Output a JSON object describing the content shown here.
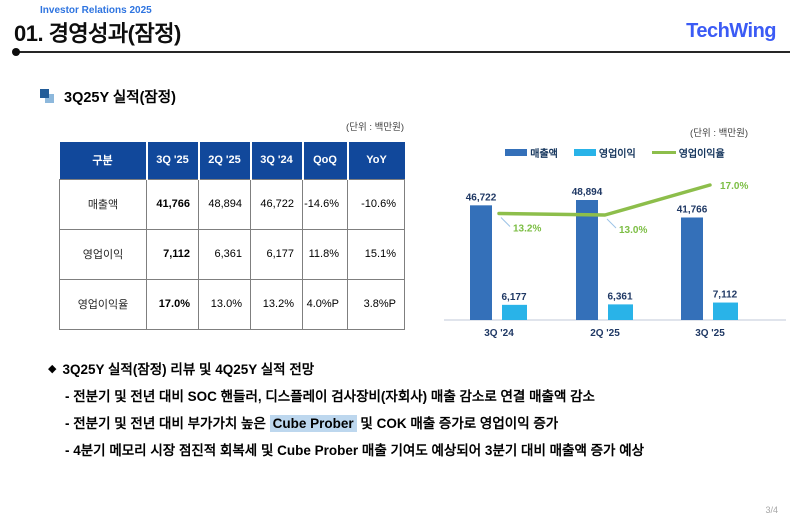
{
  "header": {
    "eyebrow": "Investor Relations 2025",
    "title": "01. 경영성과(잠정)",
    "logo": "TechWing"
  },
  "section": {
    "title": "3Q25Y 실적(잠정)"
  },
  "table": {
    "unit_label": "(단위 : 백만원)",
    "columns": [
      "구분",
      "3Q '25",
      "2Q '25",
      "3Q '24",
      "QoQ",
      "YoY"
    ],
    "rows": [
      {
        "label": "매출액",
        "values": [
          "41,766",
          "48,894",
          "46,722",
          "-14.6%",
          "-10.6%"
        ]
      },
      {
        "label": "영업이익",
        "values": [
          "7,112",
          "6,361",
          "6,177",
          "11.8%",
          "15.1%"
        ]
      },
      {
        "label": "영업이익율",
        "values": [
          "17.0%",
          "13.0%",
          "13.2%",
          "4.0%P",
          "3.8%P"
        ]
      }
    ]
  },
  "chart_data": {
    "type": "bar",
    "unit_label": "(단위 : 백만원)",
    "categories": [
      "3Q '24",
      "2Q '25",
      "3Q '25"
    ],
    "series": [
      {
        "name": "매출액",
        "type": "bar",
        "color": "#3470B9",
        "values": [
          46722,
          48894,
          41766
        ],
        "labels": [
          "46,722",
          "48,894",
          "41,766"
        ]
      },
      {
        "name": "영업이익",
        "type": "bar",
        "color": "#29B3E8",
        "values": [
          6177,
          6361,
          7112
        ],
        "labels": [
          "6,177",
          "6,361",
          "7,112"
        ]
      },
      {
        "name": "영업이익율",
        "type": "line",
        "color": "#8DBE4B",
        "values": [
          13.2,
          13.0,
          17.0
        ],
        "labels": [
          "13.2%",
          "13.0%",
          "17.0%"
        ]
      }
    ],
    "legend_position": "top",
    "value_axis_hidden": true,
    "grid": false
  },
  "bullets": {
    "heading": "3Q25Y 실적(잠정) 리뷰 및 4Q25Y 실적 전망",
    "items": [
      {
        "pre": "- 전분기 및 전년 대비 SOC 핸들러, 디스플레이 검사장비(자회사) 매출 감소로 연결 매출액 감소",
        "highlight": "",
        "post": ""
      },
      {
        "pre": "- 전분기 및 전년 대비 부가가치 높은 ",
        "highlight": "Cube Prober",
        "post": " 및 COK 매출 증가로 영업이익 증가"
      },
      {
        "pre": "- 4분기 메모리 시장 점진적 회복세 및 Cube Prober 매출 기여도 예상되어 3분기 대비 매출액 증가 예상",
        "highlight": "",
        "post": ""
      }
    ]
  },
  "footer": {
    "page": "3/4"
  },
  "colors": {
    "table_header_blue": "#11489B",
    "bar_blue": "#3470B9",
    "bar_cyan": "#29B3E8",
    "line_green": "#8DBE4B",
    "navy_label": "#1F3864",
    "highlight_blue": "#BDD7EE",
    "logo_blue": "#3B5BF5",
    "eyebrow_blue": "#2E74E0"
  }
}
